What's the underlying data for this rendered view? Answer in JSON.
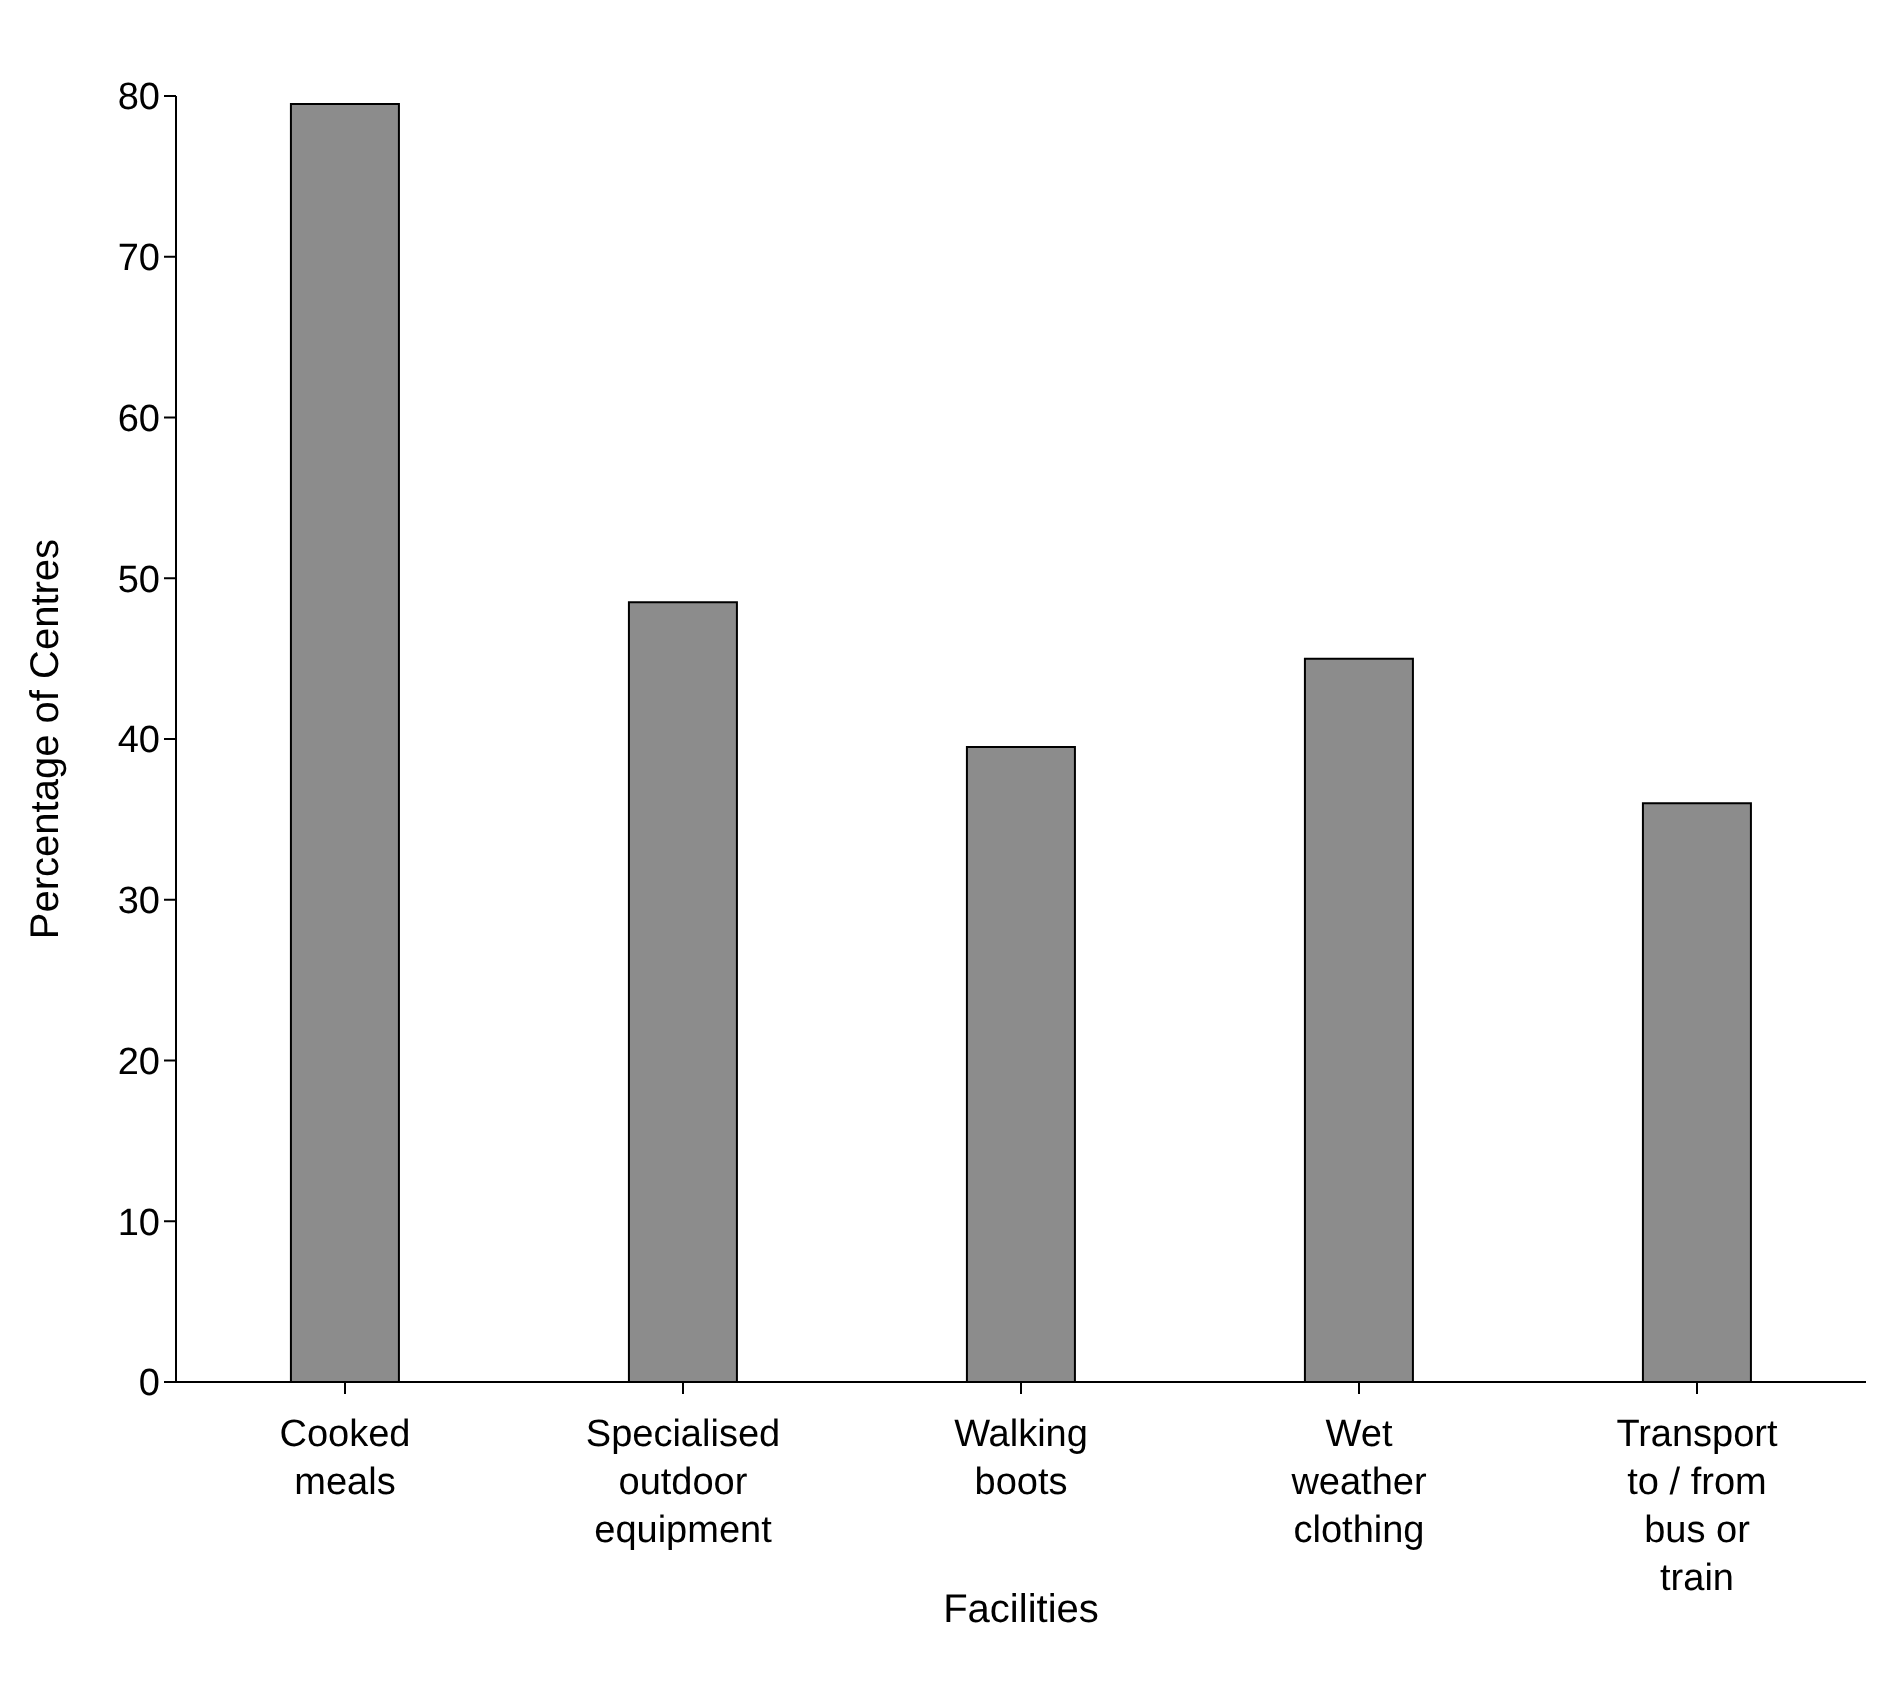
{
  "chart_data": {
    "type": "bar",
    "xlabel": "Facilities",
    "ylabel": "Percentage of Centres",
    "categories": [
      "Cooked meals",
      "Specialised outdoor equipment",
      "Walking boots",
      "Wet weather clothing",
      "Transport to / from bus or train"
    ],
    "values": [
      79.5,
      48.5,
      39.5,
      45,
      36
    ],
    "color": "#8c8c8c",
    "ylim": [
      0,
      80
    ],
    "yticks": [
      0,
      10,
      20,
      30,
      40,
      50,
      60,
      70,
      80
    ],
    "grid": false,
    "legend": false
  }
}
